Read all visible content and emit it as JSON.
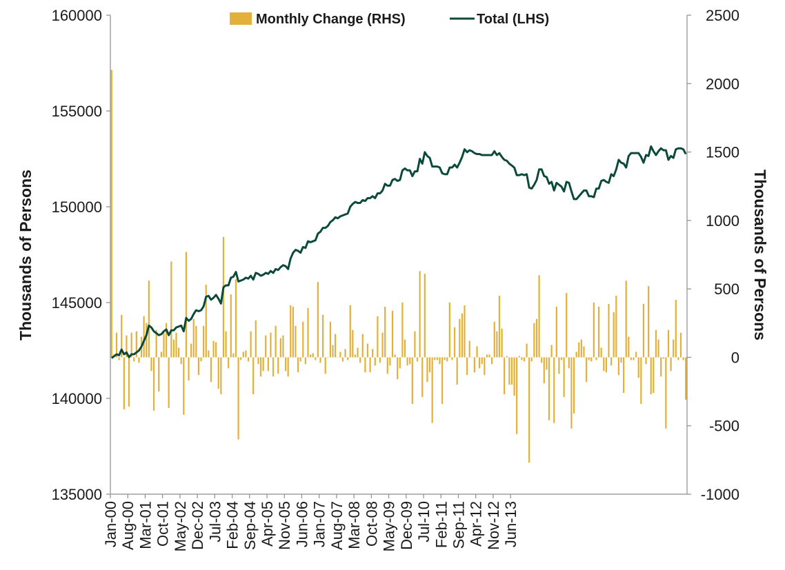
{
  "chart_data": {
    "type": "bar+line",
    "x_label_every_n_months": 7,
    "categories_visible": [
      "Jan-00",
      "Aug-00",
      "Mar-01",
      "Oct-01",
      "May-02",
      "Dec-02",
      "Jul-03",
      "Feb-04",
      "Sep-04",
      "Apr-05",
      "Nov-05",
      "Jun-06",
      "Jan-07",
      "Aug-07",
      "Mar-08",
      "Oct-08",
      "May-09",
      "Dec-09",
      "Jul-10",
      "Feb-11",
      "Sep-11",
      "Apr-12",
      "Nov-12",
      "Jun-13"
    ],
    "x_start": "Jan-00",
    "x_end": "Aug-13",
    "ylabel_left": "Thousands of Persons",
    "ylabel_right": "Thousands of Persons",
    "ylim_left": [
      135000,
      160000
    ],
    "ylim_right": [
      -1000,
      2500
    ],
    "yticks_left": [
      135000,
      140000,
      145000,
      150000,
      155000,
      160000
    ],
    "yticks_right": [
      -1000,
      -500,
      0,
      500,
      1000,
      1500,
      2000,
      2500
    ],
    "grid": false,
    "legend_position": "top",
    "series": [
      {
        "name": "Monthly Change (RHS)",
        "kind": "bar",
        "axis": "right",
        "color": "#E3B13A",
        "values": [
          2100,
          20,
          180,
          -20,
          310,
          -380,
          160,
          -360,
          180,
          -30,
          190,
          -40,
          150,
          300,
          250,
          560,
          -100,
          -390,
          200,
          -250,
          40,
          180,
          250,
          -370,
          700,
          130,
          180,
          70,
          -50,
          -420,
          770,
          -170,
          100,
          280,
          230,
          -130,
          -30,
          230,
          530,
          50,
          -180,
          120,
          110,
          -230,
          -270,
          880,
          190,
          -80,
          460,
          30,
          570,
          -600,
          -20,
          40,
          50,
          -30,
          190,
          -270,
          270,
          -50,
          -140,
          -100,
          160,
          -100,
          180,
          -140,
          230,
          -120,
          140,
          160,
          -100,
          -140,
          380,
          370,
          230,
          -110,
          -30,
          260,
          -50,
          360,
          20,
          30,
          -20,
          550,
          -40,
          310,
          -120,
          0,
          260,
          90,
          170,
          0,
          40,
          -30,
          60,
          -20,
          380,
          200,
          20,
          70,
          -40,
          170,
          -110,
          100,
          -110,
          60,
          -60,
          300,
          -40,
          180,
          370,
          -120,
          -60,
          340,
          20,
          -160,
          -80,
          400,
          130,
          -60,
          -50,
          -340,
          190,
          -30,
          630,
          -290,
          610,
          -180,
          -110,
          -480,
          -20,
          -20,
          -50,
          -340,
          -20,
          -30,
          400,
          -20,
          220,
          -200,
          280,
          320,
          380,
          -130,
          120,
          0,
          -110,
          80,
          -80,
          -50,
          -130,
          20,
          20,
          -50,
          260,
          190,
          450,
          210,
          -270,
          10,
          -200,
          -200,
          -280,
          -560,
          10,
          -20,
          -30,
          100,
          -770,
          -30,
          250,
          280,
          600,
          -40,
          -190,
          -90,
          -460,
          90,
          -480,
          370,
          -120,
          -20,
          -290,
          470,
          -80,
          -520,
          -410,
          40,
          110,
          130,
          80,
          -180,
          -20,
          -30,
          400,
          -20,
          370,
          70,
          -100,
          -110,
          390,
          -60,
          330,
          450,
          -130,
          -40,
          -260,
          560,
          150,
          -20,
          -20,
          40,
          -150,
          -340,
          390,
          -50,
          520,
          -270,
          -260,
          200,
          130,
          -140,
          -10,
          -520,
          200,
          -100,
          130,
          420,
          -20,
          180,
          -20,
          -310
        ]
      },
      {
        "name": "Total (LHS)",
        "kind": "line",
        "axis": "left",
        "color": "#0B4A3A",
        "values": [
          142100,
          142200,
          142300,
          142250,
          142550,
          142300,
          142400,
          142150,
          142300,
          142300,
          142400,
          142500,
          142700,
          143000,
          143300,
          143800,
          143700,
          143500,
          143400,
          143300,
          143350,
          143500,
          143600,
          143300,
          143550,
          143550,
          143700,
          143750,
          143800,
          143500,
          144200,
          144050,
          144150,
          144400,
          144600,
          144550,
          144600,
          144800,
          145300,
          145350,
          145150,
          145250,
          145400,
          145200,
          144950,
          145800,
          145900,
          145900,
          146300,
          146350,
          146600,
          146100,
          146150,
          146200,
          146300,
          146250,
          146400,
          146200,
          146550,
          146500,
          146400,
          146450,
          146550,
          146500,
          146650,
          146550,
          146750,
          146700,
          146850,
          146950,
          146900,
          146750,
          147300,
          147600,
          147750,
          147700,
          147600,
          147900,
          147850,
          148200,
          148150,
          148200,
          148250,
          148600,
          148700,
          148900,
          148900,
          149000,
          149200,
          149300,
          149450,
          149400,
          149500,
          149550,
          149600,
          149650,
          150000,
          150150,
          150250,
          150200,
          150200,
          150350,
          150300,
          150450,
          150450,
          150550,
          150450,
          150700,
          150700,
          150850,
          151200,
          151100,
          151100,
          151400,
          151450,
          151350,
          151400,
          151900,
          152000,
          151900,
          151900,
          151600,
          151850,
          151850,
          152500,
          152250,
          152850,
          152650,
          152550,
          152100,
          152100,
          152100,
          152050,
          151750,
          151700,
          151700,
          152050,
          152050,
          152200,
          152050,
          152300,
          152600,
          153000,
          152850,
          152950,
          152900,
          152800,
          152750,
          152750,
          152700,
          152700,
          152700,
          152700,
          152700,
          152900,
          152700,
          152800,
          152600,
          152450,
          152400,
          152250,
          152150,
          152050,
          151650,
          151650,
          151700,
          151650,
          151700,
          151000,
          150950,
          151150,
          151400,
          151950,
          151950,
          151600,
          151550,
          151200,
          151300,
          150850,
          151250,
          151150,
          151050,
          150800,
          151300,
          151250,
          150800,
          150400,
          150400,
          150550,
          150700,
          150850,
          150850,
          150550,
          150550,
          150500,
          150950,
          150950,
          151350,
          151400,
          151300,
          151250,
          151700,
          151600,
          151950,
          152450,
          152300,
          152250,
          152050,
          152650,
          152800,
          152800,
          152800,
          152800,
          152600,
          152300,
          152700,
          152650,
          153150,
          152900,
          152700,
          152900,
          153050,
          152950,
          152950,
          152450,
          152650,
          152550,
          153000,
          153050,
          153050,
          153000,
          152750
        ]
      }
    ]
  }
}
